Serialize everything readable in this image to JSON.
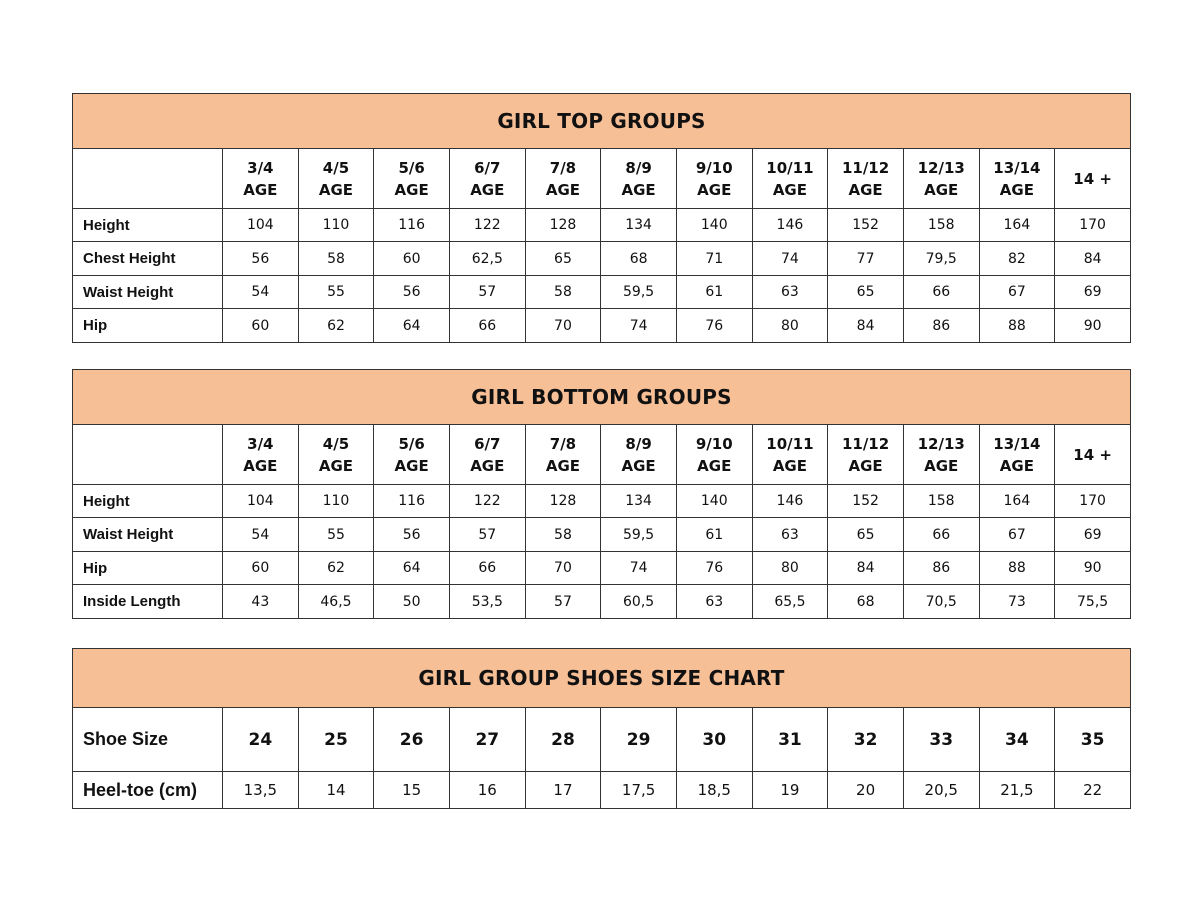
{
  "accent_color": "#f7bf96",
  "tables": [
    {
      "title": "GIRL TOP GROUPS",
      "headers": [
        "3/4|AGE",
        "4/5|AGE",
        "5/6|AGE",
        "6/7|AGE",
        "7/8|AGE",
        "8/9|AGE",
        "9/10|AGE",
        "10/11|AGE",
        "11/12|AGE",
        "12/13|AGE",
        "13/14|AGE",
        "14 +"
      ],
      "rows": [
        {
          "label": "Height",
          "values": [
            "104",
            "110",
            "116",
            "122",
            "128",
            "134",
            "140",
            "146",
            "152",
            "158",
            "164",
            "170"
          ]
        },
        {
          "label": "Chest Height",
          "values": [
            "56",
            "58",
            "60",
            "62,5",
            "65",
            "68",
            "71",
            "74",
            "77",
            "79,5",
            "82",
            "84"
          ]
        },
        {
          "label": "Waist Height",
          "values": [
            "54",
            "55",
            "56",
            "57",
            "58",
            "59,5",
            "61",
            "63",
            "65",
            "66",
            "67",
            "69"
          ]
        },
        {
          "label": "Hip",
          "values": [
            "60",
            "62",
            "64",
            "66",
            "70",
            "74",
            "76",
            "80",
            "84",
            "86",
            "88",
            "90"
          ]
        }
      ]
    },
    {
      "title": "GIRL BOTTOM GROUPS",
      "headers": [
        "3/4|AGE",
        "4/5|AGE",
        "5/6|AGE",
        "6/7|AGE",
        "7/8|AGE",
        "8/9|AGE",
        "9/10|AGE",
        "10/11|AGE",
        "11/12|AGE",
        "12/13|AGE",
        "13/14|AGE",
        "14 +"
      ],
      "rows": [
        {
          "label": "Height",
          "values": [
            "104",
            "110",
            "116",
            "122",
            "128",
            "134",
            "140",
            "146",
            "152",
            "158",
            "164",
            "170"
          ]
        },
        {
          "label": "Waist Height",
          "values": [
            "54",
            "55",
            "56",
            "57",
            "58",
            "59,5",
            "61",
            "63",
            "65",
            "66",
            "67",
            "69"
          ]
        },
        {
          "label": "Hip",
          "values": [
            "60",
            "62",
            "64",
            "66",
            "70",
            "74",
            "76",
            "80",
            "84",
            "86",
            "88",
            "90"
          ]
        },
        {
          "label": "Inside Length",
          "values": [
            "43",
            "46,5",
            "50",
            "53,5",
            "57",
            "60,5",
            "63",
            "65,5",
            "68",
            "70,5",
            "73",
            "75,5"
          ]
        }
      ]
    },
    {
      "title": "GIRL GROUP SHOES SIZE CHART",
      "rows": [
        {
          "label": "Shoe Size",
          "values": [
            "24",
            "25",
            "26",
            "27",
            "28",
            "29",
            "30",
            "31",
            "32",
            "33",
            "34",
            "35"
          ]
        },
        {
          "label": "Heel-toe (cm)",
          "values": [
            "13,5",
            "14",
            "15",
            "16",
            "17",
            "17,5",
            "18,5",
            "19",
            "20",
            "20,5",
            "21,5",
            "22"
          ]
        }
      ]
    }
  ]
}
